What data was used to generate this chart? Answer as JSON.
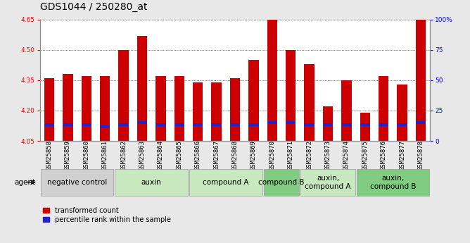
{
  "title": "GDS1044 / 250280_at",
  "samples": [
    "GSM25858",
    "GSM25859",
    "GSM25860",
    "GSM25861",
    "GSM25862",
    "GSM25863",
    "GSM25864",
    "GSM25865",
    "GSM25866",
    "GSM25867",
    "GSM25868",
    "GSM25869",
    "GSM25870",
    "GSM25871",
    "GSM25872",
    "GSM25873",
    "GSM25874",
    "GSM25875",
    "GSM25876",
    "GSM25877",
    "GSM25878"
  ],
  "red_values": [
    4.36,
    4.38,
    4.37,
    4.37,
    4.5,
    4.57,
    4.37,
    4.37,
    4.34,
    4.34,
    4.36,
    4.45,
    4.65,
    4.5,
    4.43,
    4.22,
    4.35,
    4.19,
    4.37,
    4.33,
    4.65
  ],
  "blue_values": [
    4.13,
    4.13,
    4.13,
    4.12,
    4.13,
    4.14,
    4.13,
    4.13,
    4.13,
    4.13,
    4.13,
    4.13,
    4.14,
    4.14,
    4.13,
    4.13,
    4.13,
    4.13,
    4.13,
    4.13,
    4.14
  ],
  "ylim_left": [
    4.05,
    4.65
  ],
  "ylim_right": [
    0,
    100
  ],
  "yticks_left": [
    4.05,
    4.2,
    4.35,
    4.5,
    4.65
  ],
  "yticks_right": [
    0,
    25,
    50,
    75,
    100
  ],
  "ytick_labels_right": [
    "0",
    "25",
    "50",
    "75",
    "100%"
  ],
  "groups": [
    {
      "label": "negative control",
      "start": 0,
      "end": 3,
      "color": "#d0d0d0"
    },
    {
      "label": "auxin",
      "start": 4,
      "end": 7,
      "color": "#c8e8c0"
    },
    {
      "label": "compound A",
      "start": 8,
      "end": 11,
      "color": "#c8e8c0"
    },
    {
      "label": "compound B",
      "start": 12,
      "end": 13,
      "color": "#80cc80"
    },
    {
      "label": "auxin,\ncompound A",
      "start": 14,
      "end": 16,
      "color": "#c8e8c0"
    },
    {
      "label": "auxin,\ncompound B",
      "start": 17,
      "end": 20,
      "color": "#80cc80"
    }
  ],
  "bar_color": "#cc0000",
  "blue_color": "#2222cc",
  "bar_width": 0.55,
  "background_color": "#e8e8e8",
  "plot_bg": "#ffffff",
  "title_fontsize": 10,
  "tick_fontsize": 6.5,
  "label_fontsize": 7.5,
  "legend_fontsize": 7,
  "agent_label": "agent"
}
